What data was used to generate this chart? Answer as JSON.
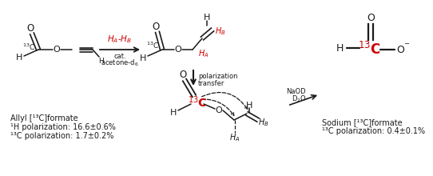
{
  "bg_color": "#ffffff",
  "text_color": "#1a1a1a",
  "red_color": "#cc0000",
  "fs_main": 7.5,
  "fs_small": 6.0,
  "fs_large": 9.0,
  "left_text": {
    "line1": "Allyl [¹³C]formate",
    "line2": "¹H polarization: 16.6±0.6%",
    "line3": "¹³C polarization: 1.7±0.2%"
  },
  "right_text": {
    "line1": "Sodium [¹³C]formate",
    "line2": "¹³C polarization: 0.4±0.1%"
  }
}
